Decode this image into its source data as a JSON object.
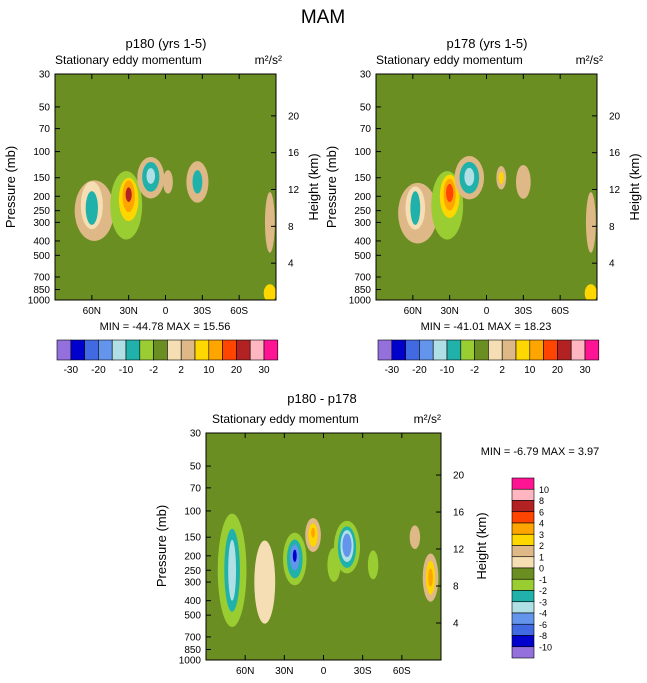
{
  "figure_title": "MAM",
  "colors": {
    "scale_30": [
      "#9370db",
      "#0000cd",
      "#4169e1",
      "#6495ed",
      "#b0e0e6",
      "#20b2aa",
      "#9acd32",
      "#6b8e23",
      "#f5deb3",
      "#deb887",
      "#ffd700",
      "#ffa500",
      "#ff4500",
      "#b22222",
      "#ffb6c1",
      "#ff1493"
    ],
    "scale_10": [
      "#ff1493",
      "#ffb6c1",
      "#b22222",
      "#ff4500",
      "#ffa500",
      "#ffd700",
      "#deb887",
      "#f5deb3",
      "#6b8e23",
      "#9acd32",
      "#20b2aa",
      "#b0e0e6",
      "#6495ed",
      "#4169e1",
      "#0000cd",
      "#9370db"
    ]
  },
  "chart_data": [
    {
      "type": "heatmap",
      "panel": "top-left",
      "title": "p180 (yrs 1-5)",
      "subtitle_left": "Stationary eddy momentum",
      "units": "m²/s²",
      "ylabel": "Pressure (mb)",
      "ylabel_right": "Height (km)",
      "x_ticks": [
        "60N",
        "30N",
        "0",
        "30S",
        "60S"
      ],
      "x_tick_values": [
        60,
        30,
        0,
        -30,
        -60
      ],
      "xlim": [
        90,
        -90
      ],
      "y_ticks": [
        "30",
        "50",
        "70",
        "100",
        "150",
        "200",
        "250",
        "300",
        "400",
        "500",
        "700",
        "850",
        "1000"
      ],
      "y_tick_values": [
        30,
        50,
        70,
        100,
        150,
        200,
        250,
        300,
        400,
        500,
        700,
        850,
        1000
      ],
      "ylim": [
        1000,
        30
      ],
      "height_ticks": [
        "4",
        "8",
        "12",
        "16",
        "20"
      ],
      "height_tick_values": [
        4,
        8,
        12,
        16,
        20
      ],
      "stats_text": "MIN = -44.78  MAX =  15.56",
      "colorbar_labels": [
        "-30",
        "-20",
        "-10",
        "-2",
        "2",
        "10",
        "20",
        "30"
      ],
      "colorbar_placement": "bottom",
      "background_level": 7,
      "features": [
        {
          "lat": 58,
          "p": 250,
          "rx": 16,
          "rp": 1.6,
          "level": 9
        },
        {
          "lat": 60,
          "p": 230,
          "rx": 9,
          "rp": 1.45,
          "level": 8
        },
        {
          "lat": 60,
          "p": 240,
          "rx": 5,
          "rp": 1.3,
          "level": 5
        },
        {
          "lat": 32,
          "p": 230,
          "rx": 13,
          "rp": 1.7,
          "level": 6
        },
        {
          "lat": 30,
          "p": 210,
          "rx": 8,
          "rp": 1.4,
          "level": 10
        },
        {
          "lat": 30,
          "p": 200,
          "rx": 5,
          "rp": 1.28,
          "level": 11
        },
        {
          "lat": 30,
          "p": 195,
          "rx": 2.5,
          "rp": 1.12,
          "level": 13
        },
        {
          "lat": 12,
          "p": 150,
          "rx": 11,
          "rp": 1.38,
          "level": 9
        },
        {
          "lat": 12,
          "p": 148,
          "rx": 7,
          "rp": 1.26,
          "level": 5
        },
        {
          "lat": 12,
          "p": 146,
          "rx": 3.5,
          "rp": 1.13,
          "level": 4
        },
        {
          "lat": -2,
          "p": 160,
          "rx": 4,
          "rp": 1.2,
          "level": 9
        },
        {
          "lat": -26,
          "p": 160,
          "rx": 9,
          "rp": 1.38,
          "level": 9
        },
        {
          "lat": -26,
          "p": 160,
          "rx": 4,
          "rp": 1.2,
          "level": 5
        },
        {
          "lat": -85,
          "p": 300,
          "rx": 4,
          "rp": 1.6,
          "level": 9
        },
        {
          "lat": -85,
          "p": 900,
          "rx": 5,
          "rp": 1.15,
          "level": 10
        }
      ]
    },
    {
      "type": "heatmap",
      "panel": "top-right",
      "title": "p178 (yrs 1-5)",
      "subtitle_left": "Stationary eddy momentum",
      "units": "m²/s²",
      "ylabel": "Pressure (mb)",
      "ylabel_right": "Height (km)",
      "x_ticks": [
        "60N",
        "30N",
        "0",
        "30S",
        "60S"
      ],
      "x_tick_values": [
        60,
        30,
        0,
        -30,
        -60
      ],
      "xlim": [
        90,
        -90
      ],
      "y_ticks": [
        "30",
        "50",
        "70",
        "100",
        "150",
        "200",
        "250",
        "300",
        "400",
        "500",
        "700",
        "850",
        "1000"
      ],
      "y_tick_values": [
        30,
        50,
        70,
        100,
        150,
        200,
        250,
        300,
        400,
        500,
        700,
        850,
        1000
      ],
      "ylim": [
        1000,
        30
      ],
      "height_ticks": [
        "4",
        "8",
        "12",
        "16",
        "20"
      ],
      "height_tick_values": [
        4,
        8,
        12,
        16,
        20
      ],
      "stats_text": "MIN = -41.01  MAX =  18.23",
      "colorbar_labels": [
        "-30",
        "-20",
        "-10",
        "-2",
        "2",
        "10",
        "20",
        "30"
      ],
      "colorbar_placement": "bottom",
      "background_level": 7,
      "features": [
        {
          "lat": 56,
          "p": 260,
          "rx": 16,
          "rp": 1.6,
          "level": 9
        },
        {
          "lat": 58,
          "p": 240,
          "rx": 8,
          "rp": 1.4,
          "level": 8
        },
        {
          "lat": 58,
          "p": 240,
          "rx": 4,
          "rp": 1.3,
          "level": 5
        },
        {
          "lat": 32,
          "p": 230,
          "rx": 13,
          "rp": 1.7,
          "level": 6
        },
        {
          "lat": 30,
          "p": 200,
          "rx": 8,
          "rp": 1.4,
          "level": 10
        },
        {
          "lat": 30,
          "p": 195,
          "rx": 5,
          "rp": 1.28,
          "level": 11
        },
        {
          "lat": 30,
          "p": 190,
          "rx": 3,
          "rp": 1.15,
          "level": 12
        },
        {
          "lat": 14,
          "p": 150,
          "rx": 12,
          "rp": 1.4,
          "level": 9
        },
        {
          "lat": 14,
          "p": 150,
          "rx": 8,
          "rp": 1.28,
          "level": 5
        },
        {
          "lat": 14,
          "p": 148,
          "rx": 4,
          "rp": 1.15,
          "level": 4
        },
        {
          "lat": -12,
          "p": 150,
          "rx": 4,
          "rp": 1.2,
          "level": 9
        },
        {
          "lat": -12,
          "p": 150,
          "rx": 2,
          "rp": 1.1,
          "level": 10
        },
        {
          "lat": -30,
          "p": 160,
          "rx": 6,
          "rp": 1.3,
          "level": 9
        },
        {
          "lat": -85,
          "p": 300,
          "rx": 4,
          "rp": 1.6,
          "level": 9
        },
        {
          "lat": -85,
          "p": 900,
          "rx": 5,
          "rp": 1.15,
          "level": 10
        }
      ]
    },
    {
      "type": "heatmap",
      "panel": "bottom",
      "title": "p180 - p178",
      "subtitle_left": "Stationary eddy momentum",
      "units": "m²/s²",
      "ylabel": "Pressure (mb)",
      "ylabel_right": "Height (km)",
      "x_ticks": [
        "60N",
        "30N",
        "0",
        "30S",
        "60S"
      ],
      "x_tick_values": [
        60,
        30,
        0,
        -30,
        -60
      ],
      "xlim": [
        90,
        -90
      ],
      "y_ticks": [
        "30",
        "50",
        "70",
        "100",
        "150",
        "200",
        "250",
        "300",
        "400",
        "500",
        "700",
        "850",
        "1000"
      ],
      "y_tick_values": [
        30,
        50,
        70,
        100,
        150,
        200,
        250,
        300,
        400,
        500,
        700,
        850,
        1000
      ],
      "ylim": [
        1000,
        30
      ],
      "height_ticks": [
        "4",
        "8",
        "12",
        "16",
        "20"
      ],
      "height_tick_values": [
        4,
        8,
        12,
        16,
        20
      ],
      "stats_text": "MIN = -6.79  MAX =  3.97",
      "colorbar_labels": [
        "10",
        "8",
        "6",
        "4",
        "3",
        "2",
        "1",
        "0",
        "-1",
        "-2",
        "-3",
        "-4",
        "-6",
        "-8",
        "-10"
      ],
      "colorbar_placement": "right",
      "background_level": 8,
      "features": [
        {
          "lat": 70,
          "p": 250,
          "rx": 11,
          "rp": 2.4,
          "level": 9
        },
        {
          "lat": 70,
          "p": 250,
          "rx": 6,
          "rp": 1.9,
          "level": 10
        },
        {
          "lat": 70,
          "p": 250,
          "rx": 3,
          "rp": 1.6,
          "level": 11
        },
        {
          "lat": 45,
          "p": 300,
          "rx": 8,
          "rp": 1.9,
          "level": 7
        },
        {
          "lat": 22,
          "p": 210,
          "rx": 9,
          "rp": 1.5,
          "level": 9
        },
        {
          "lat": 22,
          "p": 210,
          "rx": 6,
          "rp": 1.35,
          "level": 10
        },
        {
          "lat": 22,
          "p": 205,
          "rx": 3.5,
          "rp": 1.22,
          "level": 12
        },
        {
          "lat": 22,
          "p": 200,
          "rx": 1.5,
          "rp": 1.1,
          "level": 14
        },
        {
          "lat": 8,
          "p": 145,
          "rx": 6,
          "rp": 1.3,
          "level": 6
        },
        {
          "lat": 8,
          "p": 145,
          "rx": 3.5,
          "rp": 1.2,
          "level": 5
        },
        {
          "lat": 8,
          "p": 140,
          "rx": 1.5,
          "rp": 1.08,
          "level": 4
        },
        {
          "lat": -8,
          "p": 230,
          "rx": 5,
          "rp": 1.3,
          "level": 9
        },
        {
          "lat": -18,
          "p": 175,
          "rx": 10,
          "rp": 1.5,
          "level": 9
        },
        {
          "lat": -18,
          "p": 175,
          "rx": 7,
          "rp": 1.38,
          "level": 10
        },
        {
          "lat": -18,
          "p": 172,
          "rx": 5,
          "rp": 1.28,
          "level": 11
        },
        {
          "lat": -18,
          "p": 170,
          "rx": 3.5,
          "rp": 1.2,
          "level": 12
        },
        {
          "lat": -38,
          "p": 230,
          "rx": 4,
          "rp": 1.25,
          "level": 9
        },
        {
          "lat": -70,
          "p": 150,
          "rx": 4,
          "rp": 1.2,
          "level": 6
        },
        {
          "lat": -82,
          "p": 280,
          "rx": 6,
          "rp": 1.45,
          "level": 6
        },
        {
          "lat": -82,
          "p": 280,
          "rx": 3.5,
          "rp": 1.3,
          "level": 5
        },
        {
          "lat": -82,
          "p": 280,
          "rx": 1.8,
          "rp": 1.15,
          "level": 4
        }
      ]
    }
  ]
}
